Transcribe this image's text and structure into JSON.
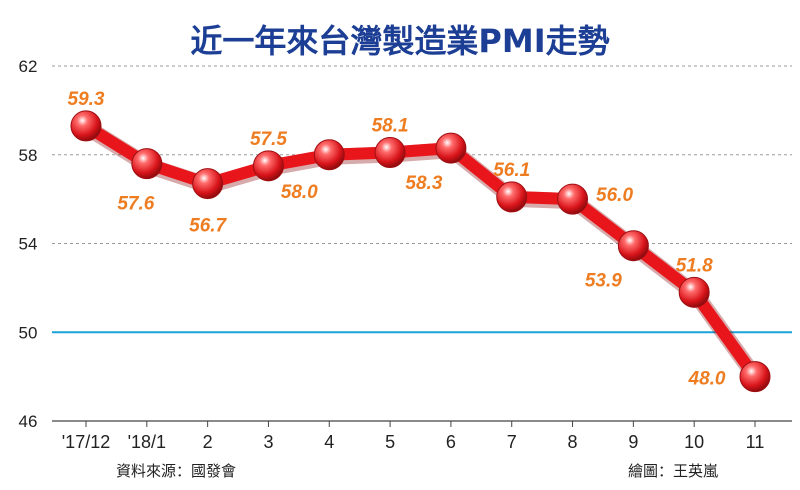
{
  "chart_data": {
    "type": "line",
    "title": "近一年來台灣製造業PMI走勢",
    "categories": [
      "'17/12",
      "'18/1",
      "2",
      "3",
      "4",
      "5",
      "6",
      "7",
      "8",
      "9",
      "10",
      "11"
    ],
    "values": [
      59.3,
      57.6,
      56.7,
      57.5,
      58.0,
      58.1,
      58.3,
      56.1,
      56.0,
      53.9,
      51.8,
      48.0
    ],
    "data_labels": [
      "59.3",
      "57.6",
      "56.7",
      "57.5",
      "58.0",
      "58.1",
      "58.3",
      "56.1",
      "56.0",
      "53.9",
      "51.8",
      "48.0"
    ],
    "yticks": [
      "46",
      "50",
      "54",
      "58",
      "62"
    ],
    "ylim": [
      46,
      62
    ],
    "reference_line": 50,
    "grid": "horizontal dashed",
    "colors": {
      "line": "#e8161b",
      "marker": "#e8161b",
      "data_label": "#ee7d22",
      "title": "#1c3f95",
      "reference_line": "#1aa3d9",
      "grid": "#9a9a9a"
    }
  },
  "footer": {
    "source": "資料來源：國發會",
    "credit": "繪圖：王英嵐"
  }
}
